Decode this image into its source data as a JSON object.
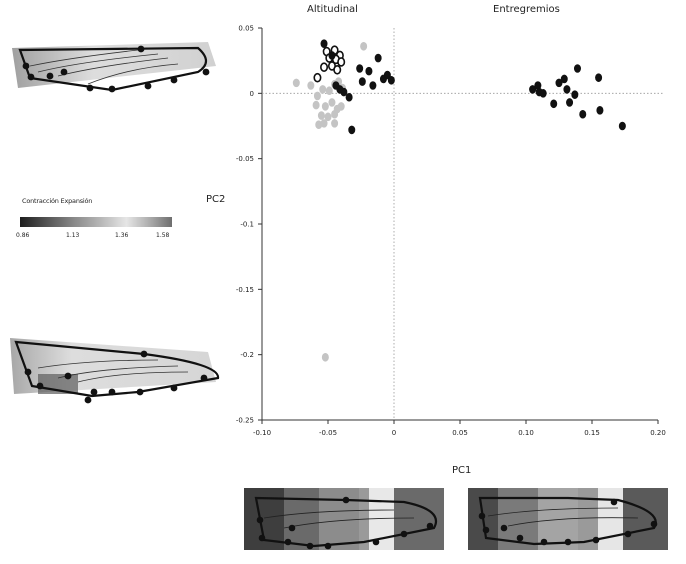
{
  "titles": {
    "left": "Altitudinal",
    "right": "Entregremios"
  },
  "legend": {
    "title": "Contracción Expansión",
    "ticks": [
      "0.86",
      "1.13",
      "1.36",
      "1.58"
    ]
  },
  "chart_data": {
    "type": "scatter",
    "xlabel": "PC1",
    "ylabel": "PC2",
    "xlim": [
      -0.1,
      0.2
    ],
    "ylim": [
      -0.25,
      0.05
    ],
    "xticks": [
      "-0.10",
      "-0.05",
      "0",
      "0.05",
      "0.10",
      "0.15",
      "0.20"
    ],
    "yticks": [
      "0.05",
      "0",
      "-0.05",
      "-0.1",
      "-0.15",
      "-0.2",
      "-0.25"
    ],
    "xtick_values": [
      -0.1,
      -0.05,
      0,
      0.05,
      0.1,
      0.15,
      0.2
    ],
    "ytick_values": [
      0.05,
      0,
      -0.05,
      -0.1,
      -0.15,
      -0.2,
      -0.25
    ],
    "series": [
      {
        "color": "#bbbbbb",
        "fill": "#c4c4c4",
        "stroke": "#c4c4c4",
        "x": [
          -0.074,
          -0.063,
          -0.058,
          -0.054,
          -0.049,
          -0.045,
          -0.042,
          -0.039,
          -0.059,
          -0.052,
          -0.047,
          -0.043,
          -0.04,
          -0.055,
          -0.05,
          -0.045,
          -0.057,
          -0.053,
          -0.045,
          -0.023,
          -0.052
        ],
        "y": [
          0.008,
          0.006,
          -0.002,
          0.003,
          0.002,
          0.007,
          0.009,
          0.004,
          -0.009,
          -0.01,
          -0.007,
          -0.012,
          -0.01,
          -0.017,
          -0.018,
          -0.016,
          -0.024,
          -0.023,
          -0.023,
          0.036,
          -0.202
        ]
      },
      {
        "color": "#000000",
        "fill": "#ffffff",
        "stroke": "#111111",
        "x": [
          -0.051,
          -0.045,
          -0.041,
          -0.049,
          -0.044,
          -0.04,
          -0.053,
          -0.047,
          -0.043,
          -0.058
        ],
        "y": [
          0.032,
          0.033,
          0.029,
          0.027,
          0.026,
          0.024,
          0.02,
          0.021,
          0.018,
          0.012
        ]
      },
      {
        "color": "#111111",
        "fill": "#111111",
        "stroke": "#111111",
        "x": [
          -0.053,
          -0.047,
          -0.026,
          -0.019,
          -0.012,
          -0.008,
          -0.005,
          -0.002,
          -0.024,
          -0.016,
          -0.038,
          -0.034,
          -0.041,
          -0.044,
          -0.032
        ],
        "y": [
          0.038,
          0.029,
          0.019,
          0.017,
          0.027,
          0.011,
          0.014,
          0.01,
          0.009,
          0.006,
          0.001,
          -0.003,
          0.003,
          0.006,
          -0.028
        ]
      },
      {
        "color": "#111111",
        "fill": "#111111",
        "stroke": "#111111",
        "x": [
          0.105,
          0.109,
          0.11,
          0.113,
          0.121,
          0.125,
          0.129,
          0.131,
          0.133,
          0.137,
          0.139,
          0.143,
          0.155,
          0.156,
          0.173
        ],
        "y": [
          0.003,
          0.006,
          0.001,
          0.0,
          -0.008,
          0.008,
          0.011,
          0.003,
          -0.007,
          -0.001,
          0.019,
          -0.016,
          0.012,
          -0.013,
          -0.025
        ]
      }
    ]
  }
}
